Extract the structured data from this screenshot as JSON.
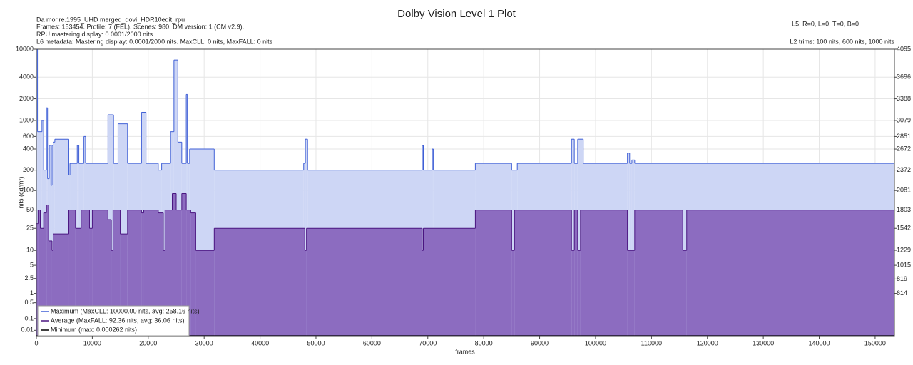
{
  "chart_data": {
    "type": "step-area",
    "title": "Dolby Vision Level 1 Plot",
    "notes_left": [
      "Da morire.1995_UHD merged_dovi_HDR10edit_rpu",
      "Frames: 153454. Profile: 7 (FEL). Scenes: 980. DM version: 1 (CM v2.9).",
      "RPU mastering display: 0.0001/2000 nits",
      "L6 metadata: Mastering display: 0.0001/2000 nits. MaxCLL: 0 nits, MaxFALL: 0 nits"
    ],
    "notes_right": [
      "L5: R=0, L=0, T=0, B=0",
      "L2 trims: 100 nits, 600 nits, 1000 nits"
    ],
    "xlabel": "frames",
    "ylabel": "nits (cd/m²)",
    "yscale": "pq",
    "grid": true,
    "legend": "lower left",
    "xlim": [
      0,
      153454
    ],
    "xticks": [
      0,
      10000,
      20000,
      30000,
      40000,
      50000,
      60000,
      70000,
      80000,
      90000,
      100000,
      110000,
      120000,
      130000,
      140000,
      150000
    ],
    "ylim": [
      0,
      10000
    ],
    "yticks": [
      10000,
      4000,
      2000,
      1000,
      600,
      400,
      200,
      100,
      50,
      25,
      10,
      5,
      2.5,
      1,
      0.5,
      0.1,
      0.01
    ],
    "y2lim": [
      0,
      4095
    ],
    "y2ticks": [
      4095,
      3696,
      3388,
      3079,
      2851,
      2672,
      2372,
      2081,
      1803,
      1542,
      1229,
      1015,
      819,
      614
    ],
    "series": [
      {
        "name": "Maximum (MaxCLL: 10000.00 nits, avg: 258.16 nits)",
        "color": "#3f5fd6",
        "fill": "#cdd6f5",
        "x": [
          0,
          200,
          1000,
          1300,
          1800,
          2000,
          2300,
          2600,
          2800,
          3000,
          3300,
          5800,
          6000,
          7300,
          7600,
          8500,
          8800,
          12800,
          13800,
          14600,
          16300,
          18800,
          19600,
          21800,
          22400,
          24000,
          24600,
          25300,
          26000,
          26800,
          27000,
          27400,
          31800,
          47800,
          48100,
          48500,
          69000,
          69200,
          70800,
          71000,
          78500,
          85000,
          86000,
          95700,
          96200,
          96800,
          97800,
          105700,
          106100,
          106500,
          107000,
          153454
        ],
        "values": [
          10000,
          700,
          1000,
          200,
          1500,
          150,
          450,
          120,
          450,
          500,
          550,
          170,
          250,
          450,
          250,
          600,
          250,
          1200,
          250,
          900,
          250,
          1300,
          250,
          200,
          250,
          700,
          7000,
          500,
          250,
          2300,
          250,
          400,
          200,
          250,
          550,
          200,
          450,
          200,
          400,
          200,
          250,
          200,
          250,
          550,
          250,
          550,
          250,
          350,
          250,
          280,
          250,
          250
        ]
      },
      {
        "name": "Average (MaxFALL: 92.36 nits, avg: 36.06 nits)",
        "color": "#4a1580",
        "fill": "#8c6cc0",
        "x": [
          0,
          300,
          700,
          1300,
          1800,
          2200,
          2800,
          3000,
          5800,
          7000,
          8000,
          9500,
          10000,
          12800,
          13400,
          13700,
          15000,
          16300,
          18800,
          19200,
          21800,
          22700,
          23000,
          24300,
          25000,
          26000,
          26800,
          27600,
          28500,
          31800,
          48000,
          48300,
          69000,
          69200,
          78500,
          85000,
          85500,
          95700,
          96200,
          96800,
          97300,
          105700,
          107000,
          115600,
          116300,
          153454
        ],
        "values": [
          30,
          50,
          25,
          45,
          60,
          15,
          10,
          20,
          50,
          25,
          50,
          25,
          50,
          35,
          10,
          50,
          20,
          50,
          45,
          50,
          45,
          10,
          50,
          90,
          50,
          90,
          50,
          45,
          10,
          25,
          10,
          25,
          10,
          25,
          50,
          10,
          50,
          10,
          50,
          10,
          50,
          10,
          50,
          10,
          50,
          50
        ]
      },
      {
        "name": "Minimum (max: 0.000262 nits)",
        "color": "#000000",
        "fill": "none",
        "x": [
          0,
          153454
        ],
        "values": [
          0.000262,
          0
        ]
      }
    ]
  }
}
